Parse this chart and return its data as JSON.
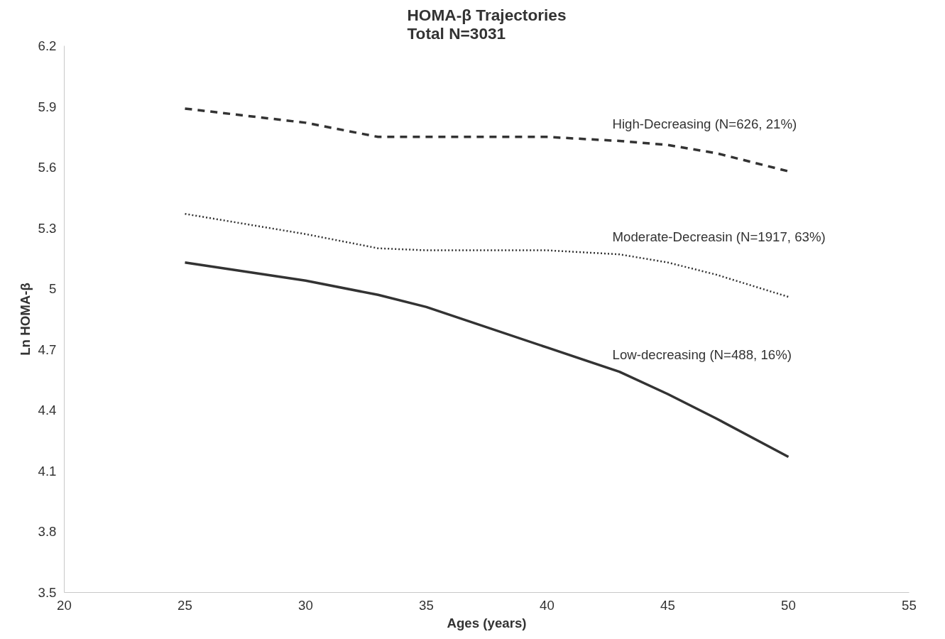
{
  "chart_data": {
    "type": "line",
    "title": "HOMA-β Trajectories\nTotal N=3031",
    "xlabel": "Ages (years)",
    "ylabel": "Ln HOMA-β",
    "x": [
      25,
      30,
      33,
      35,
      40,
      43,
      45,
      47,
      50
    ],
    "series": [
      {
        "name": "High-Decreasing (N=626, 21%)",
        "color": "#333333",
        "line_style": "dashed",
        "values": [
          5.89,
          5.82,
          5.75,
          5.75,
          5.75,
          5.73,
          5.71,
          5.67,
          5.58
        ]
      },
      {
        "name": "Moderate-Decreasin (N=1917, 63%)",
        "color": "#333333",
        "line_style": "dotted",
        "values": [
          5.37,
          5.27,
          5.2,
          5.19,
          5.19,
          5.17,
          5.13,
          5.07,
          4.96
        ]
      },
      {
        "name": "Low-decreasing (N=488, 16%)",
        "color": "#333333",
        "line_style": "solid",
        "values": [
          5.13,
          5.04,
          4.97,
          4.91,
          4.71,
          4.59,
          4.48,
          4.36,
          4.17
        ]
      }
    ],
    "xlim": [
      20,
      55
    ],
    "xticks": [
      20,
      25,
      30,
      35,
      40,
      45,
      50,
      55
    ],
    "ylim": [
      3.5,
      6.2
    ],
    "yticks": [
      3.5,
      3.8,
      4.1,
      4.4,
      4.7,
      5,
      5.3,
      5.6,
      5.9,
      6.2
    ],
    "grid": false,
    "legend": false,
    "marker": "none"
  }
}
